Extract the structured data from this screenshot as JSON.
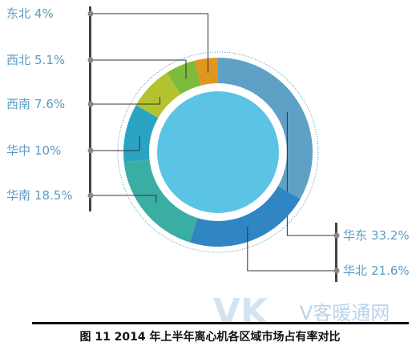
{
  "chart_data": {
    "type": "pie",
    "donut": true,
    "title": "图 11   2014 年上半年离心机各区域市场占有率对比",
    "watermark": [
      "VK",
      "V客暖通网"
    ],
    "categories": [
      "华东",
      "华北",
      "华南",
      "华中",
      "西南",
      "西北",
      "东北"
    ],
    "values": [
      33.2,
      21.6,
      18.5,
      10,
      7.6,
      5.1,
      4
    ],
    "value_labels": [
      "33.2%",
      "21.6%",
      "18.5%",
      "10%",
      "7.6%",
      "5.1%",
      "4%"
    ],
    "colors": [
      "#5fa0c6",
      "#2f86c2",
      "#3aaea2",
      "#2aa4c2",
      "#b3c22f",
      "#7cbc3a",
      "#e0961f"
    ]
  }
}
